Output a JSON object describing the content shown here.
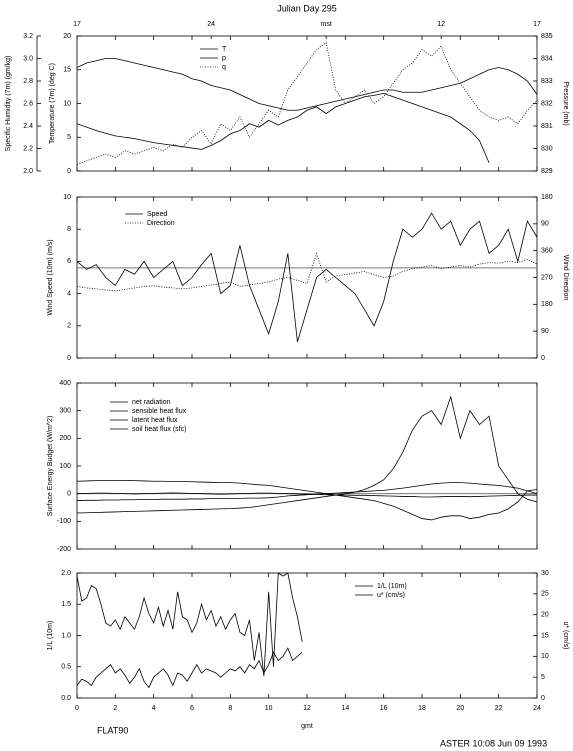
{
  "chart_data": [
    {
      "type": "line",
      "title": "Julian Day 295",
      "x2ticks": [
        {
          "value": 0,
          "label": "17"
        },
        {
          "value": 7,
          "label": "24"
        },
        {
          "value": 13,
          "label": "mst"
        },
        {
          "value": 19,
          "label": "12"
        },
        {
          "value": 24,
          "label": "17"
        }
      ],
      "x": [
        0,
        0.5,
        1,
        1.5,
        2,
        2.5,
        3,
        3.5,
        4,
        4.5,
        5,
        5.5,
        6,
        6.5,
        7,
        7.5,
        8,
        8.5,
        9,
        9.5,
        10,
        10.5,
        11,
        11.5,
        12,
        12.5,
        13,
        13.5,
        14,
        14.5,
        15,
        15.5,
        16,
        16.5,
        17,
        17.5,
        18,
        18.5,
        19,
        19.5,
        20,
        20.5,
        21,
        21.5,
        22,
        22.5,
        23,
        23.5,
        24
      ],
      "xlim": [
        0,
        24
      ],
      "ylim": [
        0,
        20
      ],
      "yticks": [
        0,
        5,
        10,
        15,
        20
      ],
      "ylabel": "Temperature (7m) (deg C)",
      "y2lim": [
        829,
        835
      ],
      "y2ticks": [
        829,
        830,
        831,
        832,
        833,
        834,
        835
      ],
      "y2label": "Pressure (mb)",
      "y3lim": [
        2,
        3.2
      ],
      "y3ticks": [
        {
          "value": 2,
          "label": "2.0"
        },
        2.2,
        2.4,
        2.6,
        2.8,
        {
          "value": 3,
          "label": "3.0"
        },
        3.2
      ],
      "y3label": "Specific Humidity (7m) (gm/kg)",
      "series": [
        {
          "name": "T",
          "color": "#000",
          "style": "solid",
          "axis": "y",
          "values": [
            7,
            6.5,
            6,
            5.6,
            5.2,
            5,
            4.8,
            4.5,
            4.2,
            4,
            3.8,
            3.6,
            3.4,
            3.2,
            3.8,
            4.5,
            5.5,
            6,
            7,
            6.5,
            7.5,
            6.8,
            7.5,
            8,
            9,
            9.5,
            8.5,
            9.5,
            10,
            10.5,
            11,
            11.2,
            11.5,
            11,
            10.5,
            10,
            9.5,
            9,
            8.5,
            8,
            7,
            6,
            4.5,
            1.2,
            null,
            null,
            null,
            null,
            null
          ]
        },
        {
          "name": "p",
          "color": "#000",
          "style": "solid",
          "axis": "y2",
          "values": [
            833.6,
            833.8,
            833.9,
            834,
            834,
            833.9,
            833.8,
            833.7,
            833.6,
            833.5,
            833.4,
            833.3,
            833.1,
            833,
            832.8,
            832.7,
            832.6,
            832.4,
            832.2,
            832,
            831.9,
            831.8,
            831.7,
            831.7,
            831.8,
            831.9,
            832,
            832.1,
            832.2,
            832.3,
            832.4,
            832.5,
            832.6,
            832.6,
            832.5,
            832.5,
            832.5,
            832.6,
            832.7,
            832.8,
            832.9,
            833.1,
            833.3,
            833.5,
            833.6,
            833.5,
            833.3,
            833,
            832.4
          ]
        },
        {
          "name": "q",
          "color": "#000",
          "style": "dotted",
          "axis": "y3",
          "values": [
            2.06,
            2.09,
            2.12,
            2.15,
            2.12,
            2.18,
            2.15,
            2.18,
            2.21,
            2.18,
            2.24,
            2.21,
            2.3,
            2.36,
            2.24,
            2.42,
            2.36,
            2.48,
            2.3,
            2.42,
            2.54,
            2.48,
            2.72,
            2.84,
            2.96,
            3.08,
            3.14,
            2.72,
            2.6,
            2.66,
            2.72,
            2.6,
            2.66,
            2.78,
            2.9,
            2.96,
            3.08,
            3.02,
            3.11,
            2.9,
            2.78,
            2.66,
            2.54,
            2.48,
            2.45,
            2.48,
            2.42,
            2.54,
            2.63
          ]
        }
      ]
    },
    {
      "type": "line",
      "x": [
        0,
        0.5,
        1,
        1.5,
        2,
        2.5,
        3,
        3.5,
        4,
        4.5,
        5,
        5.5,
        6,
        6.5,
        7,
        7.5,
        8,
        8.5,
        9,
        9.5,
        10,
        10.5,
        11,
        11.5,
        12,
        12.5,
        13,
        13.5,
        14,
        14.5,
        15,
        15.5,
        16,
        16.5,
        17,
        17.5,
        18,
        18.5,
        19,
        19.5,
        20,
        20.5,
        21,
        21.5,
        22,
        22.5,
        23,
        23.5,
        24
      ],
      "xlim": [
        0,
        24
      ],
      "ylim": [
        0,
        10
      ],
      "yticks": [
        0,
        2,
        4,
        6,
        8,
        10
      ],
      "ylabel": "Wind Speed (10m) (m/s)",
      "y2lim": [
        0,
        540
      ],
      "y2ticks": [
        0,
        90,
        180,
        270,
        360,
        {
          "value": 450,
          "label": "90"
        },
        {
          "value": 540,
          "label": "180"
        }
      ],
      "y2label": "Wind Direction",
      "hline": 5.6,
      "series": [
        {
          "name": "Speed",
          "color": "#000",
          "style": "solid",
          "axis": "y",
          "values": [
            6,
            5.5,
            5.8,
            5,
            4.5,
            5.5,
            5.2,
            6,
            5,
            5.5,
            6,
            4.5,
            5,
            5.8,
            6.5,
            4,
            4.5,
            7,
            4.5,
            3,
            1.5,
            3.5,
            6.5,
            1,
            3,
            5,
            5.5,
            5,
            4.5,
            4,
            3,
            2,
            3.5,
            6,
            8,
            7.5,
            8,
            9,
            8,
            8.5,
            7,
            8,
            8.5,
            6.5,
            7,
            8,
            6,
            8.5,
            7.5
          ]
        },
        {
          "name": "Direction",
          "color": "#000",
          "style": "dotted",
          "axis": "y2",
          "values": [
            240,
            235,
            232,
            228,
            225,
            230,
            235,
            240,
            242,
            238,
            235,
            232,
            235,
            240,
            245,
            250,
            255,
            240,
            245,
            250,
            255,
            265,
            270,
            260,
            250,
            350,
            255,
            275,
            280,
            285,
            290,
            280,
            270,
            275,
            290,
            300,
            305,
            310,
            300,
            305,
            310,
            305,
            315,
            320,
            318,
            325,
            320,
            330,
            315
          ]
        }
      ]
    },
    {
      "type": "line",
      "x": [
        0,
        0.5,
        1,
        1.5,
        2,
        2.5,
        3,
        3.5,
        4,
        4.5,
        5,
        5.5,
        6,
        6.5,
        7,
        7.5,
        8,
        8.5,
        9,
        9.5,
        10,
        10.5,
        11,
        11.5,
        12,
        12.5,
        13,
        13.5,
        14,
        14.5,
        15,
        15.5,
        16,
        16.5,
        17,
        17.5,
        18,
        18.5,
        19,
        19.5,
        20,
        20.5,
        21,
        21.5,
        22,
        22.5,
        23,
        23.5,
        24
      ],
      "xlim": [
        0,
        24
      ],
      "ylim": [
        -200,
        400
      ],
      "yticks": [
        -200,
        -100,
        0,
        100,
        200,
        300,
        400
      ],
      "ylabel": "Surface Energy Budget (W/m^2)",
      "series": [
        {
          "name": "net radiation",
          "color": "#000",
          "style": "solid",
          "axis": "y",
          "values": [
            -70,
            -69,
            -68,
            -67,
            -66,
            -65,
            -64,
            -63,
            -62,
            -61,
            -60,
            -59,
            -58,
            -57,
            -56,
            -55,
            -54,
            -52,
            -50,
            -45,
            -40,
            -35,
            -30,
            -25,
            -20,
            -15,
            -10,
            -5,
            0,
            5,
            15,
            30,
            50,
            90,
            150,
            230,
            280,
            300,
            250,
            350,
            200,
            300,
            250,
            280,
            100,
            50,
            0,
            -20,
            -30
          ]
        },
        {
          "name": "sensible heat flux",
          "color": "#000",
          "style": "solid",
          "axis": "y",
          "values": [
            45,
            46,
            47,
            48,
            48,
            48,
            47,
            46,
            45,
            45,
            44,
            44,
            43,
            42,
            41,
            40,
            40,
            38,
            35,
            32,
            30,
            25,
            20,
            15,
            10,
            5,
            0,
            -5,
            -10,
            -15,
            -20,
            -25,
            -35,
            -45,
            -60,
            -75,
            -90,
            -95,
            -85,
            -80,
            -80,
            -90,
            -85,
            -75,
            -70,
            -55,
            -30,
            10,
            15
          ]
        },
        {
          "name": "latent heat flux",
          "color": "#000",
          "style": "solid",
          "axis": "y",
          "values": [
            0,
            1,
            2,
            2,
            1,
            0,
            -1,
            0,
            1,
            2,
            3,
            2,
            1,
            0,
            -1,
            -2,
            -1,
            0,
            1,
            2,
            2,
            1,
            0,
            -1,
            -2,
            -3,
            -4,
            -5,
            -5,
            -6,
            -6,
            -7,
            -8,
            -9,
            -10,
            -10,
            -12,
            -12,
            -11,
            -10,
            -10,
            -11,
            -10,
            -9,
            -8,
            -7,
            -6,
            -5,
            -5
          ]
        },
        {
          "name": "soil heat flux (sfc)",
          "color": "#000",
          "style": "solid",
          "axis": "y",
          "values": [
            -25,
            -24,
            -24,
            -23,
            -23,
            -22,
            -22,
            -21,
            -21,
            -20,
            -20,
            -20,
            -19,
            -19,
            -18,
            -18,
            -17,
            -17,
            -16,
            -16,
            -15,
            -12,
            -8,
            -6,
            -4,
            -2,
            0,
            2,
            4,
            6,
            8,
            10,
            12,
            16,
            20,
            25,
            30,
            35,
            38,
            40,
            40,
            38,
            35,
            32,
            30,
            25,
            20,
            10,
            0
          ]
        }
      ]
    },
    {
      "type": "line",
      "x": [
        0,
        0.25,
        0.5,
        0.75,
        1,
        1.25,
        1.5,
        1.75,
        2,
        2.25,
        2.5,
        2.75,
        3,
        3.25,
        3.5,
        3.75,
        4,
        4.25,
        4.5,
        4.75,
        5,
        5.25,
        5.5,
        5.75,
        6,
        6.25,
        6.5,
        6.75,
        7,
        7.25,
        7.5,
        7.75,
        8,
        8.25,
        8.5,
        8.75,
        9,
        9.25,
        9.5,
        9.75,
        10,
        10.25,
        10.5,
        10.75,
        11,
        11.25,
        11.5,
        11.75
      ],
      "xlim": [
        0,
        24
      ],
      "xticks": [
        0,
        2,
        4,
        6,
        8,
        10,
        12,
        14,
        16,
        18,
        20,
        22,
        24
      ],
      "xlabel": "gmt",
      "ylim": [
        0,
        2
      ],
      "yticks": [
        {
          "value": 0,
          "label": "0.0"
        },
        0.5,
        {
          "value": 1,
          "label": "1.0"
        },
        1.5,
        {
          "value": 2,
          "label": "2.0"
        }
      ],
      "ylabel": "1/L (10m)",
      "y2lim": [
        0,
        30
      ],
      "y2ticks": [
        0,
        5,
        10,
        15,
        20,
        25,
        30
      ],
      "y2label": "u* (cm/s)",
      "series": [
        {
          "name": "1/L (10m)",
          "color": "#000",
          "style": "solid",
          "axis": "y",
          "values": [
            1.95,
            1.55,
            1.6,
            1.8,
            1.75,
            1.5,
            1.2,
            1.15,
            1.25,
            1.1,
            1.3,
            1.2,
            1.1,
            1.3,
            1.6,
            1.35,
            1.2,
            1.45,
            1.15,
            1.4,
            1.1,
            1.7,
            1.3,
            1.25,
            1.05,
            1.2,
            1.5,
            1.25,
            1.4,
            1.15,
            1.3,
            1.1,
            1.25,
            1.35,
            1.05,
            1.0,
            1.25,
            0.6,
            1.05,
            0.35,
            1.7,
            0.5,
            2.0,
            1.95,
            2.0,
            1.6,
            1.3,
            0.9
          ]
        },
        {
          "name": "u* (cm/s)",
          "color": "#000",
          "style": "solid",
          "axis": "y2",
          "values": [
            3,
            4.5,
            4,
            3,
            5,
            6,
            7,
            8,
            6,
            7,
            5.5,
            3.5,
            5,
            7,
            4,
            2.5,
            5,
            6,
            7,
            5.5,
            3,
            6,
            5.5,
            4,
            6,
            8,
            6,
            7,
            6.5,
            6,
            5,
            6,
            7,
            6.5,
            7.5,
            6,
            8,
            7,
            9,
            6,
            8,
            11,
            9,
            10,
            12,
            9,
            10,
            11
          ]
        }
      ]
    }
  ],
  "footer": {
    "left": "FLAT90",
    "right": "ASTER 10:08 Jun 09 1993"
  }
}
